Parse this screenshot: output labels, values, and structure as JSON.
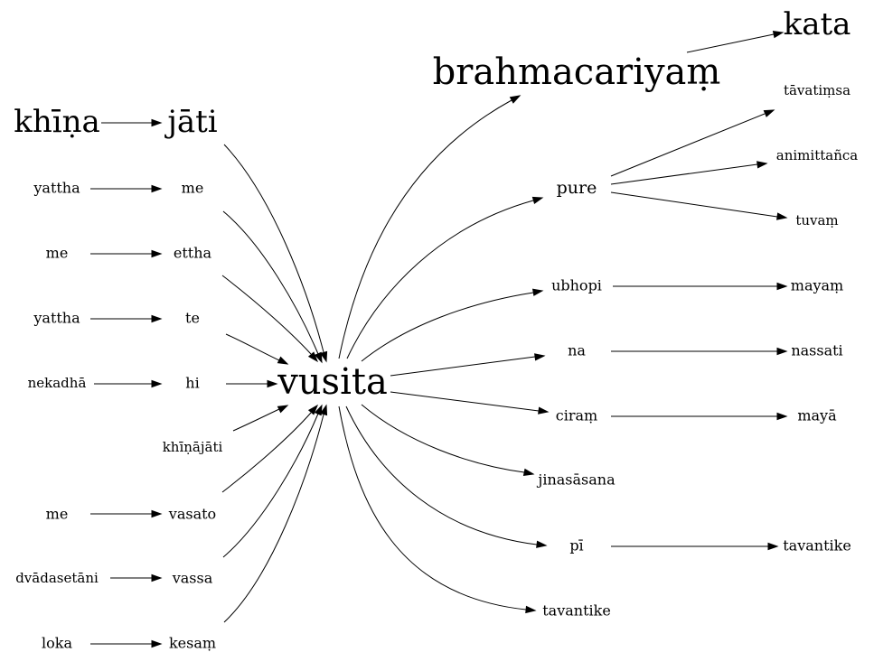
{
  "diagram": {
    "nodes": [
      {
        "id": "n_khina",
        "label": "khīṇa"
      },
      {
        "id": "n_jati",
        "label": "jāti"
      },
      {
        "id": "n_yattha1",
        "label": "yattha"
      },
      {
        "id": "n_me1",
        "label": "me"
      },
      {
        "id": "n_me2",
        "label": "me"
      },
      {
        "id": "n_ettha",
        "label": "ettha"
      },
      {
        "id": "n_yattha2",
        "label": "yattha"
      },
      {
        "id": "n_te",
        "label": "te"
      },
      {
        "id": "n_nekadha",
        "label": "nekadhā"
      },
      {
        "id": "n_hi",
        "label": "hi"
      },
      {
        "id": "n_khinajati",
        "label": "khīṇājāti"
      },
      {
        "id": "n_me3",
        "label": "me"
      },
      {
        "id": "n_vasato",
        "label": "vasato"
      },
      {
        "id": "n_dvadasetani",
        "label": "dvādasetāni"
      },
      {
        "id": "n_vassa",
        "label": "vassa"
      },
      {
        "id": "n_loka",
        "label": "loka"
      },
      {
        "id": "n_kesam",
        "label": "kesaṃ"
      },
      {
        "id": "n_vusita",
        "label": "vusita"
      },
      {
        "id": "n_brahmacariyam",
        "label": "brahmacariyaṃ"
      },
      {
        "id": "n_kata",
        "label": "kata"
      },
      {
        "id": "n_pure",
        "label": "pure"
      },
      {
        "id": "n_tavatimsa",
        "label": "tāvatiṃsa"
      },
      {
        "id": "n_animittanca",
        "label": "animittañca"
      },
      {
        "id": "n_tuvam",
        "label": "tuvaṃ"
      },
      {
        "id": "n_ubhopi",
        "label": "ubhopi"
      },
      {
        "id": "n_mayam",
        "label": "mayaṃ"
      },
      {
        "id": "n_na",
        "label": "na"
      },
      {
        "id": "n_nassati",
        "label": "nassati"
      },
      {
        "id": "n_ciram",
        "label": "ciraṃ"
      },
      {
        "id": "n_maya",
        "label": "mayā"
      },
      {
        "id": "n_jinasasana",
        "label": "jinasāsana"
      },
      {
        "id": "n_pi",
        "label": "pī"
      },
      {
        "id": "n_tavantike1",
        "label": "tavantike"
      },
      {
        "id": "n_tavantike2",
        "label": "tavantike"
      }
    ],
    "edges": [
      {
        "from": "n_khina",
        "to": "n_jati"
      },
      {
        "from": "n_yattha1",
        "to": "n_me1"
      },
      {
        "from": "n_me2",
        "to": "n_ettha"
      },
      {
        "from": "n_yattha2",
        "to": "n_te"
      },
      {
        "from": "n_nekadha",
        "to": "n_hi"
      },
      {
        "from": "n_me3",
        "to": "n_vasato"
      },
      {
        "from": "n_dvadasetani",
        "to": "n_vassa"
      },
      {
        "from": "n_loka",
        "to": "n_kesam"
      },
      {
        "from": "n_jati",
        "to": "n_vusita"
      },
      {
        "from": "n_me1",
        "to": "n_vusita"
      },
      {
        "from": "n_ettha",
        "to": "n_vusita"
      },
      {
        "from": "n_te",
        "to": "n_vusita"
      },
      {
        "from": "n_hi",
        "to": "n_vusita"
      },
      {
        "from": "n_khinajati",
        "to": "n_vusita"
      },
      {
        "from": "n_vasato",
        "to": "n_vusita"
      },
      {
        "from": "n_vassa",
        "to": "n_vusita"
      },
      {
        "from": "n_kesam",
        "to": "n_vusita"
      },
      {
        "from": "n_vusita",
        "to": "n_brahmacariyam"
      },
      {
        "from": "n_brahmacariyam",
        "to": "n_kata"
      },
      {
        "from": "n_vusita",
        "to": "n_pure"
      },
      {
        "from": "n_pure",
        "to": "n_tavatimsa"
      },
      {
        "from": "n_pure",
        "to": "n_animittanca"
      },
      {
        "from": "n_pure",
        "to": "n_tuvam"
      },
      {
        "from": "n_vusita",
        "to": "n_ubhopi"
      },
      {
        "from": "n_ubhopi",
        "to": "n_mayam"
      },
      {
        "from": "n_vusita",
        "to": "n_na"
      },
      {
        "from": "n_na",
        "to": "n_nassati"
      },
      {
        "from": "n_vusita",
        "to": "n_ciram"
      },
      {
        "from": "n_ciram",
        "to": "n_maya"
      },
      {
        "from": "n_vusita",
        "to": "n_jinasasana"
      },
      {
        "from": "n_vusita",
        "to": "n_pi"
      },
      {
        "from": "n_pi",
        "to": "n_tavantike2"
      },
      {
        "from": "n_vusita",
        "to": "n_tavantike1"
      }
    ]
  }
}
